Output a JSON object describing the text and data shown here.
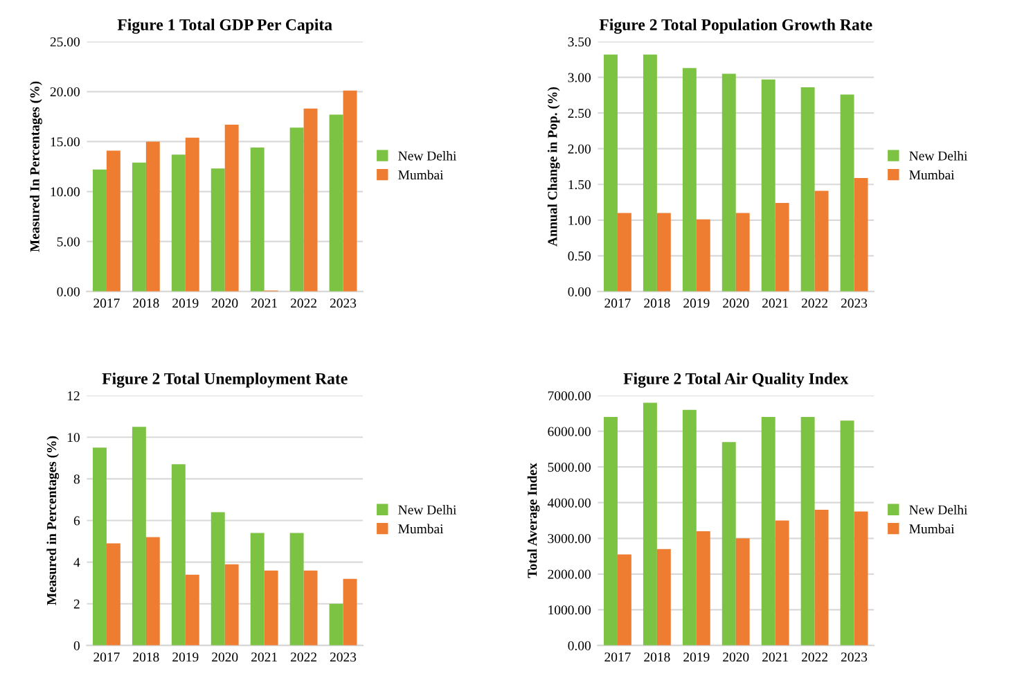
{
  "chart_data": [
    {
      "type": "bar",
      "title": "Figure 1 Total GDP Per Capita",
      "ylabel": "Measured In Percentages (%)",
      "categories": [
        "2017",
        "2018",
        "2019",
        "2020",
        "2021",
        "2022",
        "2023"
      ],
      "series": [
        {
          "name": "New Delhi",
          "color": "#7cc243",
          "values": [
            12.2,
            12.9,
            13.7,
            12.3,
            14.4,
            16.4,
            17.7
          ]
        },
        {
          "name": "Mumbai",
          "color": "#ee7d31",
          "values": [
            14.1,
            15.0,
            15.4,
            16.7,
            0.1,
            18.3,
            20.1
          ]
        }
      ],
      "ylim": [
        0,
        25
      ],
      "yticks": [
        {
          "value": 0,
          "label": "0.00"
        },
        {
          "value": 5,
          "label": "5.00"
        },
        {
          "value": 10,
          "label": "10.00"
        },
        {
          "value": 15,
          "label": "15.00"
        },
        {
          "value": 20,
          "label": "20.00"
        },
        {
          "value": 25,
          "label": "25.00"
        }
      ],
      "grid": "y",
      "legend": "right"
    },
    {
      "type": "bar",
      "title": "Figure 2 Total Population Growth Rate",
      "ylabel": "Annual Change in Pop. (%)",
      "categories": [
        "2017",
        "2018",
        "2019",
        "2020",
        "2021",
        "2022",
        "2023"
      ],
      "series": [
        {
          "name": "New Delhi",
          "color": "#7cc243",
          "values": [
            3.32,
            3.32,
            3.13,
            3.05,
            2.97,
            2.86,
            2.76
          ]
        },
        {
          "name": "Mumbai",
          "color": "#ee7d31",
          "values": [
            1.1,
            1.1,
            1.01,
            1.1,
            1.24,
            1.41,
            1.59
          ]
        }
      ],
      "ylim": [
        0,
        3.5
      ],
      "yticks": [
        {
          "value": 0,
          "label": "0.00"
        },
        {
          "value": 0.5,
          "label": "0.50"
        },
        {
          "value": 1,
          "label": "1.00"
        },
        {
          "value": 1.5,
          "label": "1.50"
        },
        {
          "value": 2,
          "label": "2.00"
        },
        {
          "value": 2.5,
          "label": "2.50"
        },
        {
          "value": 3,
          "label": "3.00"
        },
        {
          "value": 3.5,
          "label": "3.50"
        }
      ],
      "grid": "y",
      "legend": "right"
    },
    {
      "type": "bar",
      "title": "Figure 2 Total Unemployment Rate",
      "ylabel": "Measured in Percentages (%)",
      "categories": [
        "2017",
        "2018",
        "2019",
        "2020",
        "2021",
        "2022",
        "2023"
      ],
      "series": [
        {
          "name": "New Delhi",
          "color": "#7cc243",
          "values": [
            9.5,
            10.5,
            8.7,
            6.4,
            5.4,
            5.4,
            2.0
          ]
        },
        {
          "name": "Mumbai",
          "color": "#ee7d31",
          "values": [
            4.9,
            5.2,
            3.4,
            3.9,
            3.6,
            3.6,
            3.2
          ]
        }
      ],
      "ylim": [
        0,
        12
      ],
      "yticks": [
        0,
        2,
        4,
        6,
        8,
        10,
        12
      ],
      "grid": "y",
      "legend": "right"
    },
    {
      "type": "bar",
      "title": "Figure 2 Total Air Quality Index",
      "ylabel": "Total Average Index",
      "categories": [
        "2017",
        "2018",
        "2019",
        "2020",
        "2021",
        "2022",
        "2023"
      ],
      "series": [
        {
          "name": "New Delhi",
          "color": "#7cc243",
          "values": [
            6400,
            6800,
            6600,
            5700,
            6400,
            6400,
            6300
          ]
        },
        {
          "name": "Mumbai",
          "color": "#ee7d31",
          "values": [
            2550,
            2700,
            3200,
            3000,
            3500,
            3800,
            3750
          ]
        }
      ],
      "ylim": [
        0,
        7000
      ],
      "yticks": [
        {
          "value": 0,
          "label": "0.00"
        },
        {
          "value": 1000,
          "label": "1000.00"
        },
        {
          "value": 2000,
          "label": "2000.00"
        },
        {
          "value": 3000,
          "label": "3000.00"
        },
        {
          "value": 4000,
          "label": "4000.00"
        },
        {
          "value": 5000,
          "label": "5000.00"
        },
        {
          "value": 6000,
          "label": "6000.00"
        },
        {
          "value": 7000,
          "label": "7000.00"
        }
      ],
      "grid": "y",
      "legend": "right"
    }
  ]
}
